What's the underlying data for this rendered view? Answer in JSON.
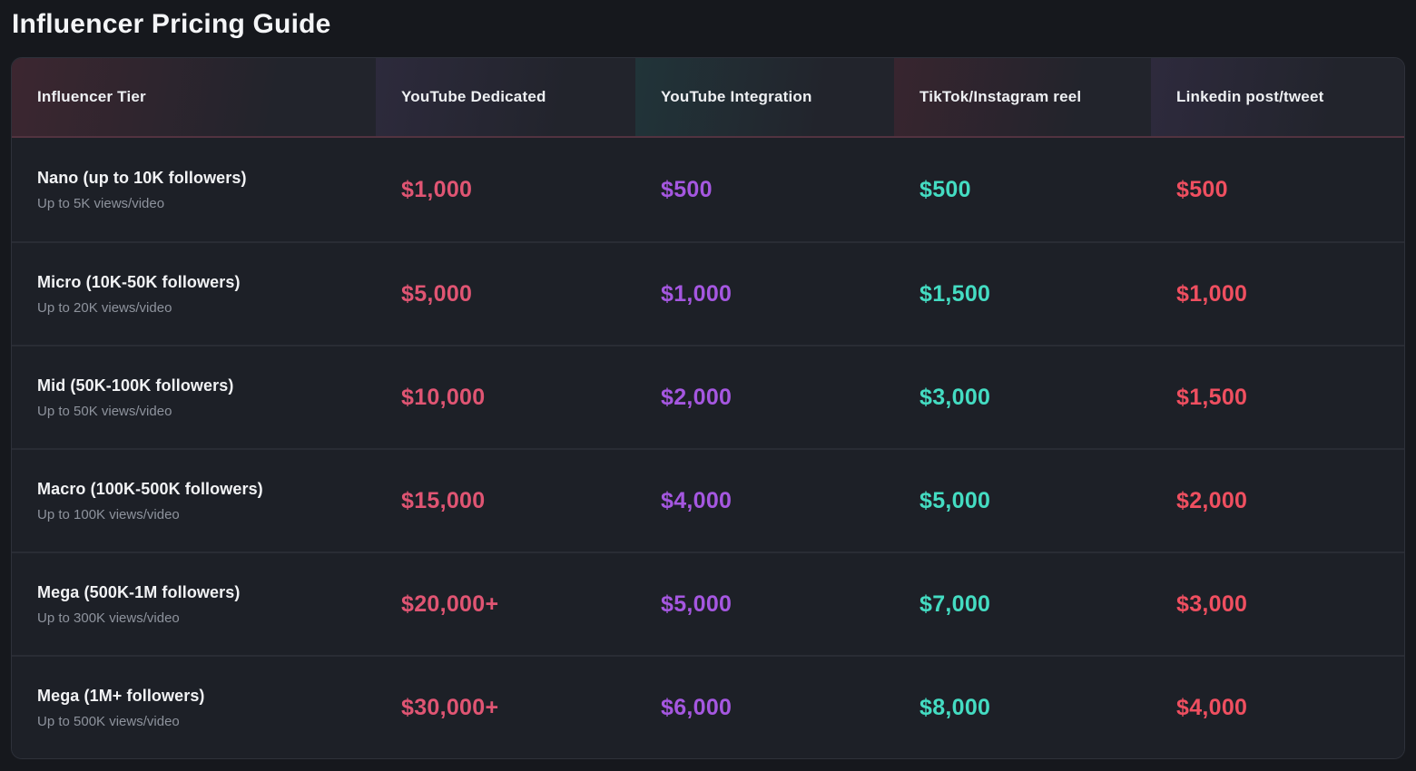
{
  "page": {
    "title": "Influencer Pricing Guide"
  },
  "table": {
    "columns": [
      {
        "label": "Influencer Tier",
        "tint": "#3c2630"
      },
      {
        "label": "YouTube Dedicated",
        "tint": "#2d2a3c"
      },
      {
        "label": "YouTube Integration",
        "tint": "#213439"
      },
      {
        "label": "TikTok/Instagram reel",
        "tint": "#38252f"
      },
      {
        "label": "Linkedin post/tweet",
        "tint": "#2e2a3d"
      }
    ],
    "accent_colors": {
      "youtube_dedicated": "#e05573",
      "youtube_integration": "#a557e0",
      "tiktok_instagram": "#44dcc2",
      "linkedin": "#ef4f60"
    },
    "rows": [
      {
        "tier": "Nano (up to 10K followers)",
        "views": "Up to 5K views/video",
        "youtube_dedicated": "$1,000",
        "youtube_integration": "$500",
        "tiktok_instagram": "$500",
        "linkedin": "$500"
      },
      {
        "tier": "Micro (10K-50K followers)",
        "views": "Up to 20K views/video",
        "youtube_dedicated": "$5,000",
        "youtube_integration": "$1,000",
        "tiktok_instagram": "$1,500",
        "linkedin": "$1,000"
      },
      {
        "tier": "Mid (50K-100K followers)",
        "views": "Up to 50K views/video",
        "youtube_dedicated": "$10,000",
        "youtube_integration": "$2,000",
        "tiktok_instagram": "$3,000",
        "linkedin": "$1,500"
      },
      {
        "tier": "Macro (100K-500K followers)",
        "views": "Up to 100K views/video",
        "youtube_dedicated": "$15,000",
        "youtube_integration": "$4,000",
        "tiktok_instagram": "$5,000",
        "linkedin": "$2,000"
      },
      {
        "tier": "Mega (500K-1M followers)",
        "views": "Up to 300K views/video",
        "youtube_dedicated": "$20,000+",
        "youtube_integration": "$5,000",
        "tiktok_instagram": "$7,000",
        "linkedin": "$3,000"
      },
      {
        "tier": "Mega (1M+ followers)",
        "views": "Up to 500K views/video",
        "youtube_dedicated": "$30,000+",
        "youtube_integration": "$6,000",
        "tiktok_instagram": "$8,000",
        "linkedin": "$4,000"
      }
    ]
  }
}
